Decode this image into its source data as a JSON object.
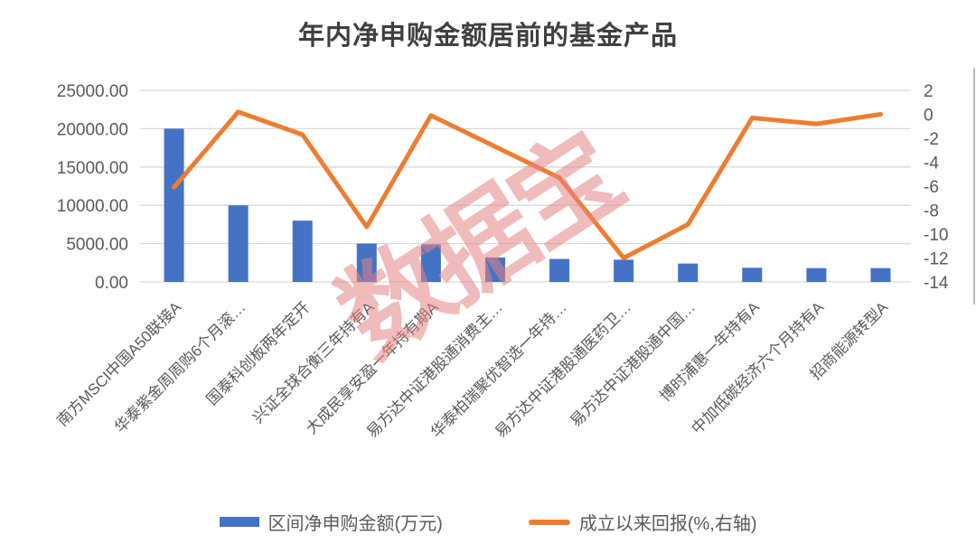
{
  "title": "年内净申购金额居前的基金产品",
  "watermark": "数据宝",
  "legend": {
    "bar_label": "区间净申购金额(万元)",
    "line_label": "成立以来回报(%,右轴)"
  },
  "colors": {
    "bar": "#4472C4",
    "line": "#ED7D31",
    "grid": "#D9D9D9",
    "axis_text": "#595959",
    "title_text": "#3f3f3f",
    "watermark": "#E48484",
    "plot_border": "#A6A6A6"
  },
  "chart_data": {
    "type": "bar",
    "subtype": "combo bar+line, dual axis",
    "title": "年内净申购金额居前的基金产品",
    "categories": [
      "南方MSCI中国A50联接A",
      "华泰紫金周周购6个月滚…",
      "国泰科创板两年定开",
      "兴证全球合衡三年持有A",
      "大成民享安盈一年持有期A",
      "易方达中证港股通消费主…",
      "华泰柏瑞聚优智选一年持…",
      "易方达中证港股通医药卫…",
      "易方达中证港股通中国…",
      "博时浦惠一年持有A",
      "中加低碳经济六个月持有A",
      "招商能源转型A"
    ],
    "series": [
      {
        "name": "区间净申购金额(万元)",
        "type": "bar",
        "axis": "left",
        "values": [
          20000,
          10000,
          8000,
          5000,
          4900,
          3200,
          3000,
          2900,
          2400,
          1850,
          1800,
          1800
        ]
      },
      {
        "name": "成立以来回报(%,右轴)",
        "type": "line",
        "axis": "right",
        "values": [
          -6.1,
          0.2,
          -1.7,
          -9.4,
          -0.1,
          -2.7,
          -5.3,
          -12.0,
          -9.2,
          -0.3,
          -0.8,
          0.0
        ]
      }
    ],
    "left_axis": {
      "min": 0,
      "max": 25000,
      "step": 5000,
      "tick_labels": [
        "25000.00",
        "20000.00",
        "15000.00",
        "10000.00",
        "5000.00",
        "0.00"
      ]
    },
    "right_axis": {
      "min": -14,
      "max": 2,
      "step": 2,
      "tick_labels": [
        "2",
        "0",
        "-2",
        "-4",
        "-6",
        "-8",
        "-10",
        "-12",
        "-14"
      ]
    },
    "grid": "horizontal only",
    "legend_position": "bottom"
  }
}
